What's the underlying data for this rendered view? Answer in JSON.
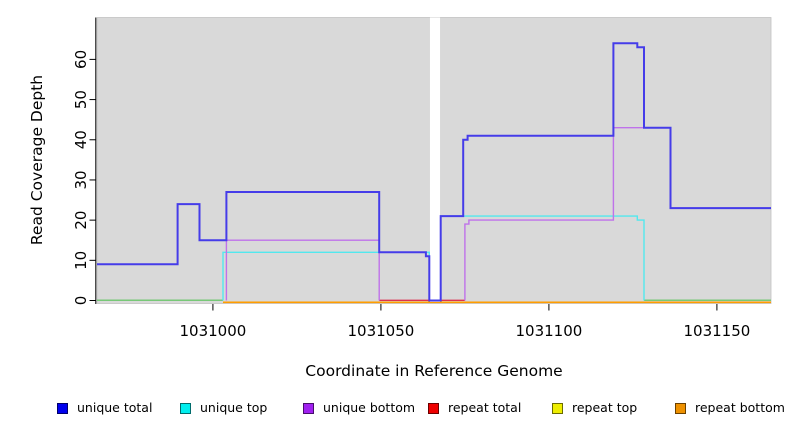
{
  "chart_data": {
    "type": "line",
    "subtype": "step-coverage-plot",
    "title": "",
    "xlabel": "Coordinate in Reference Genome",
    "ylabel": "Read Coverage Depth",
    "xlim": [
      1030965.5,
      1031166.1
    ],
    "ylim": [
      0,
      70.4
    ],
    "xticks": [
      1031000,
      1031050,
      1031100,
      1031150
    ],
    "yticks": [
      0,
      10,
      20,
      30,
      40,
      50,
      60
    ],
    "grid": "off",
    "plot_bg": "#d9d9d9",
    "plot_border": "#c2c2c2",
    "gap_region": [
      1031064.6,
      1031067.6
    ],
    "gap_color": "#ffffff",
    "series": [
      {
        "name": "repeat bottom",
        "color": "#ff9d00",
        "width": 1.7,
        "z": "below",
        "points": [
          [
            1031003,
            -0.45
          ],
          [
            1031166.1,
            -0.45
          ]
        ]
      },
      {
        "name": "repeat top (overlap shows green, left)",
        "color": "#77c877",
        "width": 1.5,
        "z": "below",
        "points": [
          [
            1030965.5,
            0.05
          ],
          [
            1031003,
            0.05
          ]
        ]
      },
      {
        "name": "repeat top (overlap shows green, right)",
        "color": "#77c877",
        "width": 1.5,
        "z": "below",
        "points": [
          [
            1031128.3,
            0.05
          ],
          [
            1031166.1,
            0.05
          ]
        ]
      },
      {
        "name": "repeat total",
        "color": "#dc3050",
        "width": 1.3,
        "z": "below",
        "points": [
          [
            1031049.5,
            0.05
          ],
          [
            1031075,
            0.05
          ]
        ]
      },
      {
        "name": "unique top (left block)",
        "color": "#52e8ee",
        "width": 1.4,
        "z": "above",
        "points": [
          [
            1031003,
            0
          ],
          [
            1031003,
            12
          ],
          [
            1031064.4,
            12
          ],
          [
            1031064.4,
            0
          ]
        ]
      },
      {
        "name": "unique top (right block)",
        "color": "#52e8ee",
        "width": 1.4,
        "z": "above",
        "points": [
          [
            1031067.8,
            0
          ],
          [
            1031067.8,
            21
          ],
          [
            1031126.3,
            21
          ],
          [
            1031126.3,
            20
          ],
          [
            1031128.3,
            20
          ],
          [
            1031128.3,
            0
          ]
        ]
      },
      {
        "name": "unique bottom (left block)",
        "color": "#bf72ea",
        "width": 1.4,
        "z": "above",
        "points": [
          [
            1031004,
            0
          ],
          [
            1031004,
            15
          ],
          [
            1031049.5,
            15
          ],
          [
            1031049.5,
            0
          ]
        ]
      },
      {
        "name": "unique bottom (right block)",
        "color": "#bf72ea",
        "width": 1.4,
        "z": "above",
        "points": [
          [
            1031075,
            0
          ],
          [
            1031075,
            19
          ],
          [
            1031076.2,
            19
          ],
          [
            1031076.2,
            20
          ],
          [
            1031119.2,
            20
          ],
          [
            1031119.2,
            43
          ],
          [
            1031136.2,
            43
          ],
          [
            1031136.2,
            23
          ],
          [
            1031166.1,
            23
          ]
        ]
      },
      {
        "name": "unique total",
        "color": "#453ce9",
        "width": 2,
        "z": "above",
        "points": [
          [
            1030965.5,
            9
          ],
          [
            1030989.5,
            9
          ],
          [
            1030989.5,
            24
          ],
          [
            1030996,
            24
          ],
          [
            1030996,
            15
          ],
          [
            1031004,
            15
          ],
          [
            1031004,
            27
          ],
          [
            1031049.5,
            27
          ],
          [
            1031049.5,
            12
          ],
          [
            1031063.4,
            12
          ],
          [
            1031063.4,
            11
          ],
          [
            1031064.4,
            11
          ],
          [
            1031064.4,
            0
          ],
          [
            1031067.8,
            0
          ],
          [
            1031067.8,
            21
          ],
          [
            1031074.5,
            21
          ],
          [
            1031074.5,
            40
          ],
          [
            1031075.8,
            40
          ],
          [
            1031075.8,
            41
          ],
          [
            1031119.2,
            41
          ],
          [
            1031119.2,
            64
          ],
          [
            1031126.3,
            64
          ],
          [
            1031126.3,
            63
          ],
          [
            1031128.3,
            63
          ],
          [
            1031128.3,
            43
          ],
          [
            1031136.2,
            43
          ],
          [
            1031136.2,
            23
          ],
          [
            1031166.1,
            23
          ]
        ]
      }
    ],
    "legend": [
      {
        "label": "unique total",
        "color": "#0000ee"
      },
      {
        "label": "unique top",
        "color": "#00eeee"
      },
      {
        "label": "unique bottom",
        "color": "#a020f0"
      },
      {
        "label": "repeat total",
        "color": "#ee0000"
      },
      {
        "label": "repeat top",
        "color": "#eeee00"
      },
      {
        "label": "repeat bottom",
        "color": "#ee9100"
      }
    ],
    "legend_position": "bottom"
  }
}
